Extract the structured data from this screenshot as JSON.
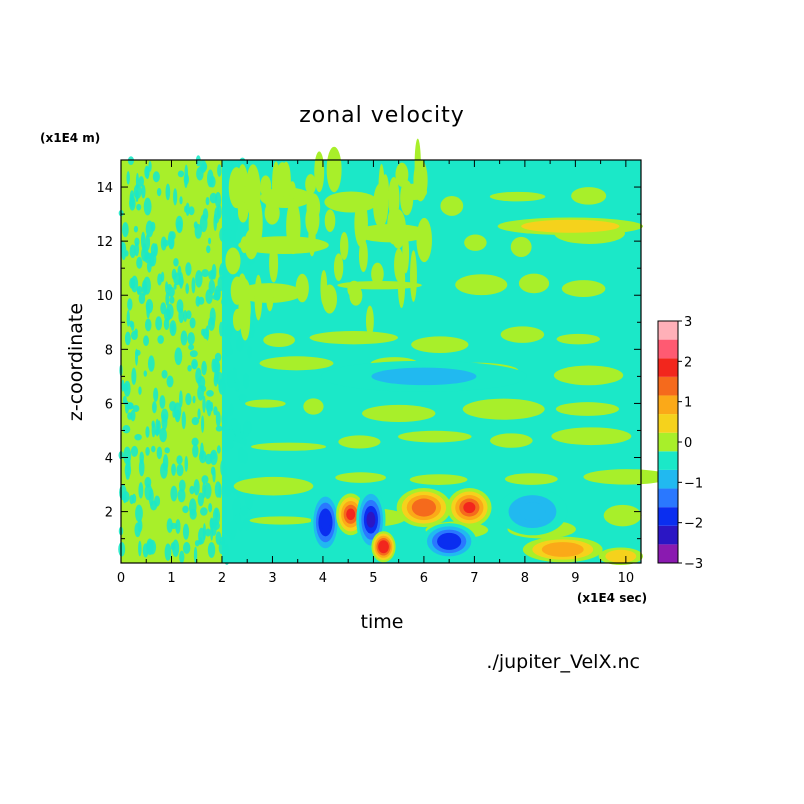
{
  "chart_data": {
    "type": "heatmap",
    "title": "zonal velocity",
    "xlabel": "time",
    "ylabel": "z-coordinate",
    "x_unit": "(x1E4 sec)",
    "y_unit": "(x1E4 m)",
    "source": "./jupiter_VelX.nc",
    "xlim": [
      0,
      10.3
    ],
    "ylim": [
      0.1,
      15
    ],
    "x_ticks": [
      0,
      1,
      2,
      3,
      4,
      5,
      6,
      7,
      8,
      9,
      10
    ],
    "y_ticks": [
      2,
      4,
      6,
      8,
      10,
      12,
      14
    ],
    "x_tick_labels": [
      "0",
      "1",
      "2",
      "3",
      "4",
      "5",
      "6",
      "7",
      "8",
      "9",
      "10"
    ],
    "y_tick_labels": [
      "2",
      "4",
      "6",
      "8",
      "10",
      "12",
      "14"
    ],
    "colorbar": {
      "min": -3,
      "max": 3,
      "ticks": [
        3,
        2,
        1,
        0,
        -1,
        -2,
        -3
      ],
      "tick_labels": [
        "3",
        "2",
        "1",
        "0",
        "−1",
        "−2",
        "−3"
      ],
      "levels": [
        {
          "from": -3.0,
          "to": -2.5,
          "color": "#8a1ab0"
        },
        {
          "from": -2.5,
          "to": -2.0,
          "color": "#2b16c4"
        },
        {
          "from": -2.0,
          "to": -1.5,
          "color": "#0a2ef0"
        },
        {
          "from": -1.5,
          "to": -1.0,
          "color": "#2a78ff"
        },
        {
          "from": -1.0,
          "to": -0.5,
          "color": "#21b9f0"
        },
        {
          "from": -0.5,
          "to": 0.0,
          "color": "#1be8c8"
        },
        {
          "from": 0.0,
          "to": 0.5,
          "color": "#a8ef2a"
        },
        {
          "from": 0.5,
          "to": 1.0,
          "color": "#f5d21c"
        },
        {
          "from": 1.0,
          "to": 1.5,
          "color": "#fba918"
        },
        {
          "from": 1.5,
          "to": 2.0,
          "color": "#f56a1c"
        },
        {
          "from": 2.0,
          "to": 2.5,
          "color": "#f2261d"
        },
        {
          "from": 2.5,
          "to": 3.0,
          "color": "#ff5a72"
        },
        {
          "from": 3.0,
          "to": 3.5,
          "color": "#ffb0b8"
        }
      ]
    },
    "features": [
      {
        "t": [
          0,
          2
        ],
        "z": [
          0.1,
          15
        ],
        "value": 0.25,
        "pattern": "fine_noise"
      },
      {
        "t": [
          2,
          10.3
        ],
        "z": [
          0.1,
          15
        ],
        "value": -0.2,
        "pattern": "background"
      },
      {
        "t": [
          7.5,
          10.3
        ],
        "z": [
          12.3,
          12.8
        ],
        "value": 0.8
      },
      {
        "t": [
          4,
          8
        ],
        "z": [
          6.5,
          7.5
        ],
        "value": -0.7
      },
      {
        "t": [
          3.8,
          4.3
        ],
        "z": [
          0.5,
          2.7
        ],
        "value": -2.0
      },
      {
        "t": [
          4.3,
          4.8
        ],
        "z": [
          1.2,
          2.6
        ],
        "value": 2.0
      },
      {
        "t": [
          4.7,
          5.2
        ],
        "z": [
          0.6,
          2.8
        ],
        "value": -2.2
      },
      {
        "t": [
          5.0,
          5.4
        ],
        "z": [
          0.2,
          1.2
        ],
        "value": 2.3
      },
      {
        "t": [
          5.5,
          6.5
        ],
        "z": [
          1.5,
          2.8
        ],
        "value": 1.8
      },
      {
        "t": [
          6.5,
          7.3
        ],
        "z": [
          1.5,
          2.8
        ],
        "value": 2.0
      },
      {
        "t": [
          6.0,
          7.0
        ],
        "z": [
          0.3,
          1.5
        ],
        "value": -1.8
      },
      {
        "t": [
          7.5,
          8.8
        ],
        "z": [
          1.2,
          2.8
        ],
        "value": -0.8
      },
      {
        "t": [
          8.0,
          9.5
        ],
        "z": [
          0.2,
          1.0
        ],
        "value": 1.3
      },
      {
        "t": [
          9.5,
          10.3
        ],
        "z": [
          0.1,
          0.6
        ],
        "value": 0.8
      }
    ]
  }
}
